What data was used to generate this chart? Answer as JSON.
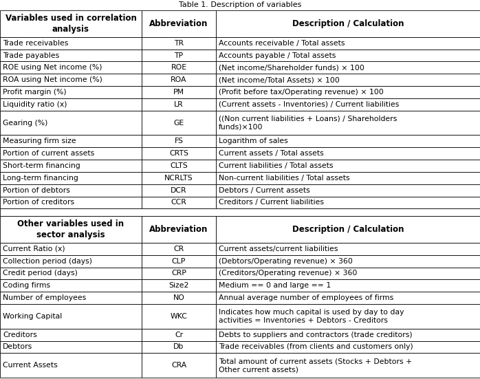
{
  "title": "Table 1. Description of variables",
  "col_ratios": [
    0.295,
    0.155,
    0.55
  ],
  "headers1": [
    "Variables used in correlation\nanalysis",
    "Abbreviation",
    "Description / Calculation"
  ],
  "rows1": [
    [
      "Trade receivables",
      "TR",
      "Accounts receivable / Total assets"
    ],
    [
      "Trade payables",
      "TP",
      "Accounts payable / Total assets"
    ],
    [
      "ROE using Net income (%)",
      "ROE",
      "(Net income/Shareholder funds) × 100"
    ],
    [
      "ROA using Net income (%)",
      "ROA",
      "(Net income/Total Assets) × 100"
    ],
    [
      "Profit margin (%)",
      "PM",
      "(Profit before tax/Operating revenue) × 100"
    ],
    [
      "Liquidity ratio (x)",
      "LR",
      "(Current assets - Inventories) / Current liabilities"
    ],
    [
      "Gearing (%)",
      "GE",
      "((Non current liabilities + Loans) / Shareholders\nfunds)×100"
    ],
    [
      "Measuring firm size",
      "FS",
      "Logarithm of sales"
    ],
    [
      "Portion of current assets",
      "CRTS",
      "Current assets / Total assets"
    ],
    [
      "Short-term financing",
      "CLTS",
      "Current liabilities / Total assets"
    ],
    [
      "Long-term financing",
      "NCRLTS",
      "Non-current liabilities / Total assets"
    ],
    [
      "Portion of debtors",
      "DCR",
      "Debtors / Current assets"
    ],
    [
      "Portion of creditors",
      "CCR",
      "Creditors / Current liabilities"
    ]
  ],
  "headers2": [
    "Other variables used in\nsector analysis",
    "Abbreviation",
    "Description / Calculation"
  ],
  "rows2": [
    [
      "Current Ratio (x)",
      "CR",
      "Current assets/current liabilities"
    ],
    [
      "Collection period (days)",
      "CLP",
      "(Debtors/Operating revenue) × 360"
    ],
    [
      "Credit period (days)",
      "CRP",
      "(Creditors/Operating revenue) × 360"
    ],
    [
      "Coding firms",
      "Size2",
      "Medium == 0 and large == 1"
    ],
    [
      "Number of employees",
      "NO",
      "Annual average number of employees of firms"
    ],
    [
      "Working Capital",
      "WKC",
      "Indicates how much capital is used by day to day\nactivities = Inventories + Debtors - Creditors"
    ],
    [
      "Creditors",
      "Cr",
      "Debts to suppliers and contractors (trade creditors)"
    ],
    [
      "Debtors",
      "Db",
      "Trade receivables (from clients and customers only)"
    ],
    [
      "Current Assets",
      "CRA",
      "Total amount of current assets (Stocks + Debtors +\nOther current assets)"
    ]
  ],
  "bg_color": "#ffffff",
  "border_color": "#000000",
  "text_color": "#000000",
  "font_size": 7.8,
  "header_font_size": 8.5
}
